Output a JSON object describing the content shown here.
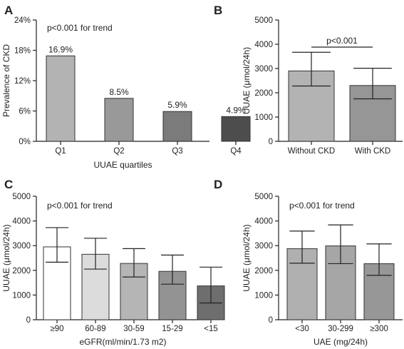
{
  "chart_data": [
    {
      "panel": "A",
      "type": "bar",
      "annotation": "p<0.001 for trend",
      "xlabel": "UUAE quartiles",
      "ylabel": "Prevalence of CKD",
      "categories": [
        "Q1",
        "Q2",
        "Q3",
        "Q4"
      ],
      "values": [
        16.9,
        8.5,
        5.9,
        4.9
      ],
      "value_labels": [
        "16.9%",
        "8.5%",
        "5.9%",
        "4.9%"
      ],
      "ylim": [
        0,
        24
      ],
      "yticks": [
        0,
        6,
        12,
        18,
        24
      ],
      "ytick_labels": [
        "0%",
        "6%",
        "12%",
        "18%",
        "24%"
      ],
      "colors": [
        "#b3b3b3",
        "#999999",
        "#7b7b7b",
        "#4d4d4d"
      ]
    },
    {
      "panel": "B",
      "type": "bar",
      "annotation": "p<0.001",
      "xlabel": "",
      "ylabel": "UUAE (μmol/24h)",
      "categories": [
        "Without CKD",
        "With CKD"
      ],
      "values": [
        2900,
        2300
      ],
      "error_low": [
        2280,
        1750
      ],
      "error_high": [
        3670,
        3010
      ],
      "ylim": [
        0,
        5000
      ],
      "yticks": [
        0,
        1000,
        2000,
        3000,
        4000,
        5000
      ],
      "ytick_labels": [
        "0",
        "1000",
        "2000",
        "3000",
        "4000",
        "5000"
      ],
      "colors": [
        "#b3b3b3",
        "#969696"
      ]
    },
    {
      "panel": "C",
      "type": "bar",
      "annotation": "p<0.001 for trend",
      "xlabel": "eGFR(ml/min/1.73 m2)",
      "ylabel": "UUAE (μmol/24h)",
      "categories": [
        "≥90",
        "60-89",
        "30-59",
        "15-29",
        "<15"
      ],
      "values": [
        2950,
        2650,
        2280,
        1960,
        1370
      ],
      "error_low": [
        2330,
        2050,
        1730,
        1440,
        680
      ],
      "error_high": [
        3730,
        3300,
        2880,
        2620,
        2130
      ],
      "ylim": [
        0,
        5000
      ],
      "yticks": [
        0,
        1000,
        2000,
        3000,
        4000,
        5000
      ],
      "ytick_labels": [
        "0",
        "1000",
        "2000",
        "3000",
        "4000",
        "5000"
      ],
      "colors": [
        "#ffffff",
        "#dcdcdc",
        "#b5b5b5",
        "#939393",
        "#6e6e6e"
      ]
    },
    {
      "panel": "D",
      "type": "bar",
      "annotation": "p<0.001 for trend",
      "xlabel": "UAE (mg/24h)",
      "ylabel": "UUAE (μmol/24h)",
      "categories": [
        "<30",
        "30-299",
        "≥300"
      ],
      "values": [
        2880,
        2990,
        2270
      ],
      "error_low": [
        2290,
        2270,
        1800
      ],
      "error_high": [
        3590,
        3840,
        3070
      ],
      "ylim": [
        0,
        5000
      ],
      "yticks": [
        0,
        1000,
        2000,
        3000,
        4000,
        5000
      ],
      "ytick_labels": [
        "0",
        "1000",
        "2000",
        "3000",
        "4000",
        "5000"
      ],
      "colors": [
        "#b0b0b0",
        "#a6a6a6",
        "#979797"
      ]
    }
  ]
}
